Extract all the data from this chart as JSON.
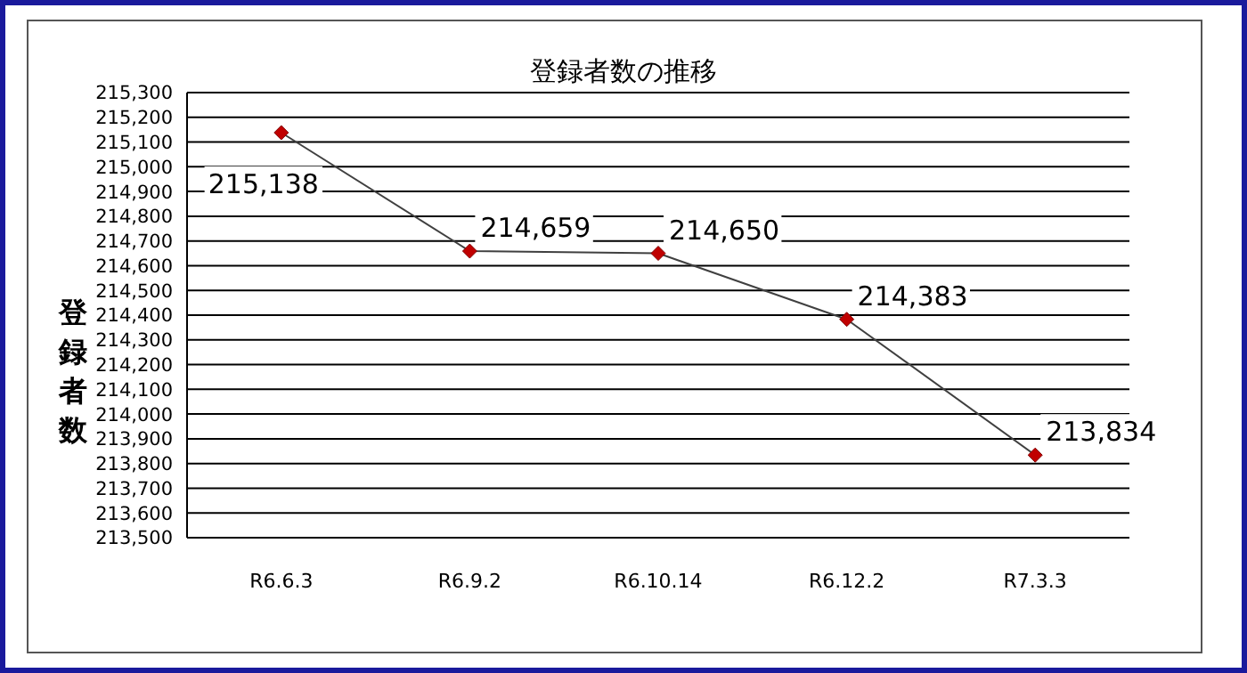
{
  "chart_data": {
    "type": "line",
    "title": "登録者数の推移",
    "ylabel": "登録者数",
    "categories": [
      "R6.6.3",
      "R6.9.2",
      "R6.10.14",
      "R6.12.2",
      "R7.3.3"
    ],
    "series": [
      {
        "color": "#c00000",
        "values": [
          215138,
          214659,
          214650,
          214383,
          213834
        ],
        "value_labels": [
          "215,138",
          "214,659",
          "214,650",
          "214,383",
          "213,834"
        ]
      }
    ],
    "ylim": [
      213500,
      215300
    ],
    "yticks": [
      {
        "value": 213500,
        "label": "213,500"
      },
      {
        "value": 213600,
        "label": "213,600"
      },
      {
        "value": 213700,
        "label": "213,700"
      },
      {
        "value": 213800,
        "label": "213,800"
      },
      {
        "value": 213900,
        "label": "213,900"
      },
      {
        "value": 214000,
        "label": "214,000"
      },
      {
        "value": 214100,
        "label": "214,100"
      },
      {
        "value": 214200,
        "label": "214,200"
      },
      {
        "value": 214300,
        "label": "214,300"
      },
      {
        "value": 214400,
        "label": "214,400"
      },
      {
        "value": 214500,
        "label": "214,500"
      },
      {
        "value": 214600,
        "label": "214,600"
      },
      {
        "value": 214700,
        "label": "214,700"
      },
      {
        "value": 214800,
        "label": "214,800"
      },
      {
        "value": 214900,
        "label": "214,900"
      },
      {
        "value": 215000,
        "label": "215,000"
      },
      {
        "value": 215100,
        "label": "215,100"
      },
      {
        "value": 215200,
        "label": "215,200"
      },
      {
        "value": 215300,
        "label": "215,300"
      }
    ],
    "grid": "y",
    "marker": "diamond",
    "line_style": "solid"
  }
}
